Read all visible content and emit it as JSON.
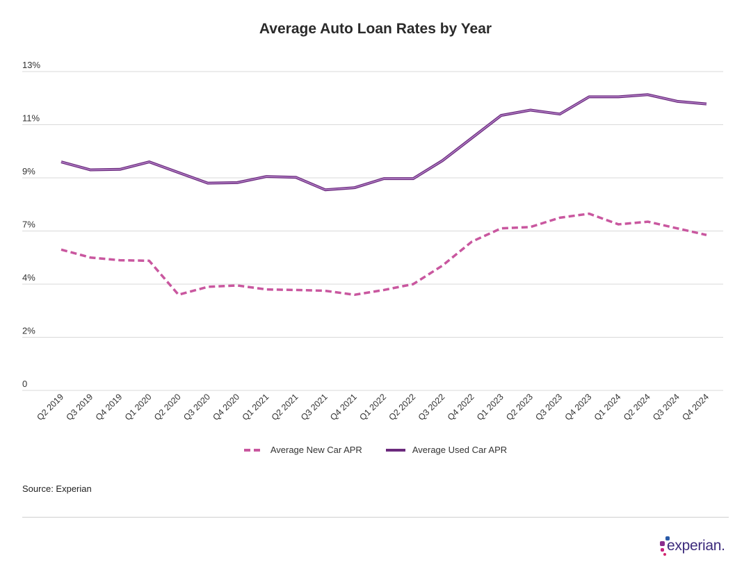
{
  "chart_data": {
    "type": "line",
    "title": "Average Auto Loan Rates by Year",
    "xlabel": "",
    "ylabel": "",
    "categories": [
      "Q2 2019",
      "Q3 2019",
      "Q4 2019",
      "Q1 2020",
      "Q2 2020",
      "Q3 2020",
      "Q4 2020",
      "Q1 2021",
      "Q2 2021",
      "Q3 2021",
      "Q4 2021",
      "Q1 2022",
      "Q2 2022",
      "Q3 2022",
      "Q4 2022",
      "Q1 2023",
      "Q2 2023",
      "Q3 2023",
      "Q4 2023",
      "Q1 2024",
      "Q2 2024",
      "Q3 2024",
      "Q4 2024"
    ],
    "y_tick_labels": [
      "0",
      "2%",
      "4%",
      "7%",
      "9%",
      "11%",
      "13%"
    ],
    "ylim": [
      0,
      12
    ],
    "grid": "horizontal",
    "legend_position": "bottom",
    "series": [
      {
        "name": "Average New Car APR",
        "style": "dashed",
        "color": "#c9579f",
        "values": [
          5.3,
          5.0,
          4.9,
          4.88,
          3.6,
          3.9,
          3.95,
          3.8,
          3.78,
          3.75,
          3.6,
          3.78,
          4.0,
          4.7,
          5.6,
          6.1,
          6.15,
          6.5,
          6.65,
          6.25,
          6.35,
          6.1,
          5.85
        ]
      },
      {
        "name": "Average Used Car APR",
        "style": "solid",
        "color": "#6b2a7d",
        "values": [
          8.6,
          8.3,
          8.32,
          8.6,
          8.2,
          7.8,
          7.82,
          8.05,
          8.02,
          7.55,
          7.63,
          7.97,
          7.97,
          8.65,
          9.5,
          10.35,
          10.55,
          10.4,
          11.05,
          11.05,
          11.13,
          10.88,
          10.78
        ]
      }
    ]
  },
  "source": "Source: Experian",
  "logo": {
    "text": "experian.",
    "dot_colors": [
      "#2a5ba8",
      "#8a2d8e",
      "#c7237f",
      "#d3266f"
    ]
  }
}
